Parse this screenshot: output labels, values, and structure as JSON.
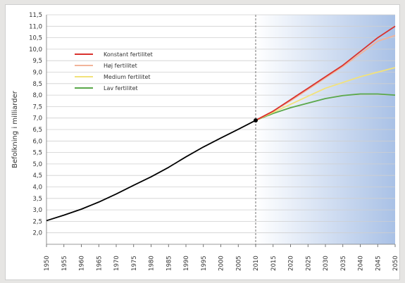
{
  "chart_data": {
    "type": "line",
    "ylabel": "Befolkning i milliarder",
    "xlabel": "",
    "ylim": [
      1.5,
      11.5
    ],
    "xlim": [
      1950,
      2050
    ],
    "x_ticks": [
      1950,
      1955,
      1960,
      1965,
      1970,
      1975,
      1980,
      1985,
      1990,
      1995,
      2000,
      2005,
      2010,
      2015,
      2020,
      2025,
      2030,
      2035,
      2040,
      2045,
      2050
    ],
    "y_ticks": [
      "2,0",
      "2,5",
      "3,0",
      "3,5",
      "4,0",
      "4,5",
      "5,0",
      "5,5",
      "6,0",
      "6,5",
      "7,0",
      "7,5",
      "8,0",
      "8,5",
      "9,0",
      "9,5",
      "10,0",
      "10,5",
      "11,0",
      "11,5"
    ],
    "grid": true,
    "legend_position": "top-left",
    "projection_start": 2010,
    "historical": {
      "x": [
        1950,
        1955,
        1960,
        1965,
        1970,
        1975,
        1980,
        1985,
        1990,
        1995,
        2000,
        2005,
        2010
      ],
      "y": [
        2.53,
        2.77,
        3.03,
        3.34,
        3.69,
        4.07,
        4.44,
        4.85,
        5.31,
        5.74,
        6.13,
        6.51,
        6.9
      ],
      "color": "#000000"
    },
    "series": [
      {
        "name": "Konstant fertilitet",
        "color": "#d9322e",
        "x": [
          2010,
          2015,
          2020,
          2025,
          2030,
          2035,
          2040,
          2045,
          2050
        ],
        "y": [
          6.9,
          7.3,
          7.8,
          8.3,
          8.8,
          9.3,
          9.9,
          10.5,
          11.0
        ]
      },
      {
        "name": "Høj fertilitet",
        "color": "#f2b49a",
        "x": [
          2010,
          2015,
          2020,
          2025,
          2030,
          2035,
          2040,
          2045,
          2050
        ],
        "y": [
          6.9,
          7.3,
          7.75,
          8.25,
          8.75,
          9.25,
          9.8,
          10.35,
          10.6
        ]
      },
      {
        "name": "Medium fertilitet",
        "color": "#f2e27a",
        "x": [
          2010,
          2015,
          2020,
          2025,
          2030,
          2035,
          2040,
          2045,
          2050
        ],
        "y": [
          6.9,
          7.25,
          7.6,
          7.95,
          8.3,
          8.55,
          8.8,
          9.0,
          9.2
        ]
      },
      {
        "name": "Lav fertilitet",
        "color": "#5aa84a",
        "x": [
          2010,
          2015,
          2020,
          2025,
          2030,
          2035,
          2040,
          2045,
          2050
        ],
        "y": [
          6.9,
          7.2,
          7.45,
          7.65,
          7.85,
          7.98,
          8.05,
          8.05,
          8.0
        ]
      }
    ]
  }
}
